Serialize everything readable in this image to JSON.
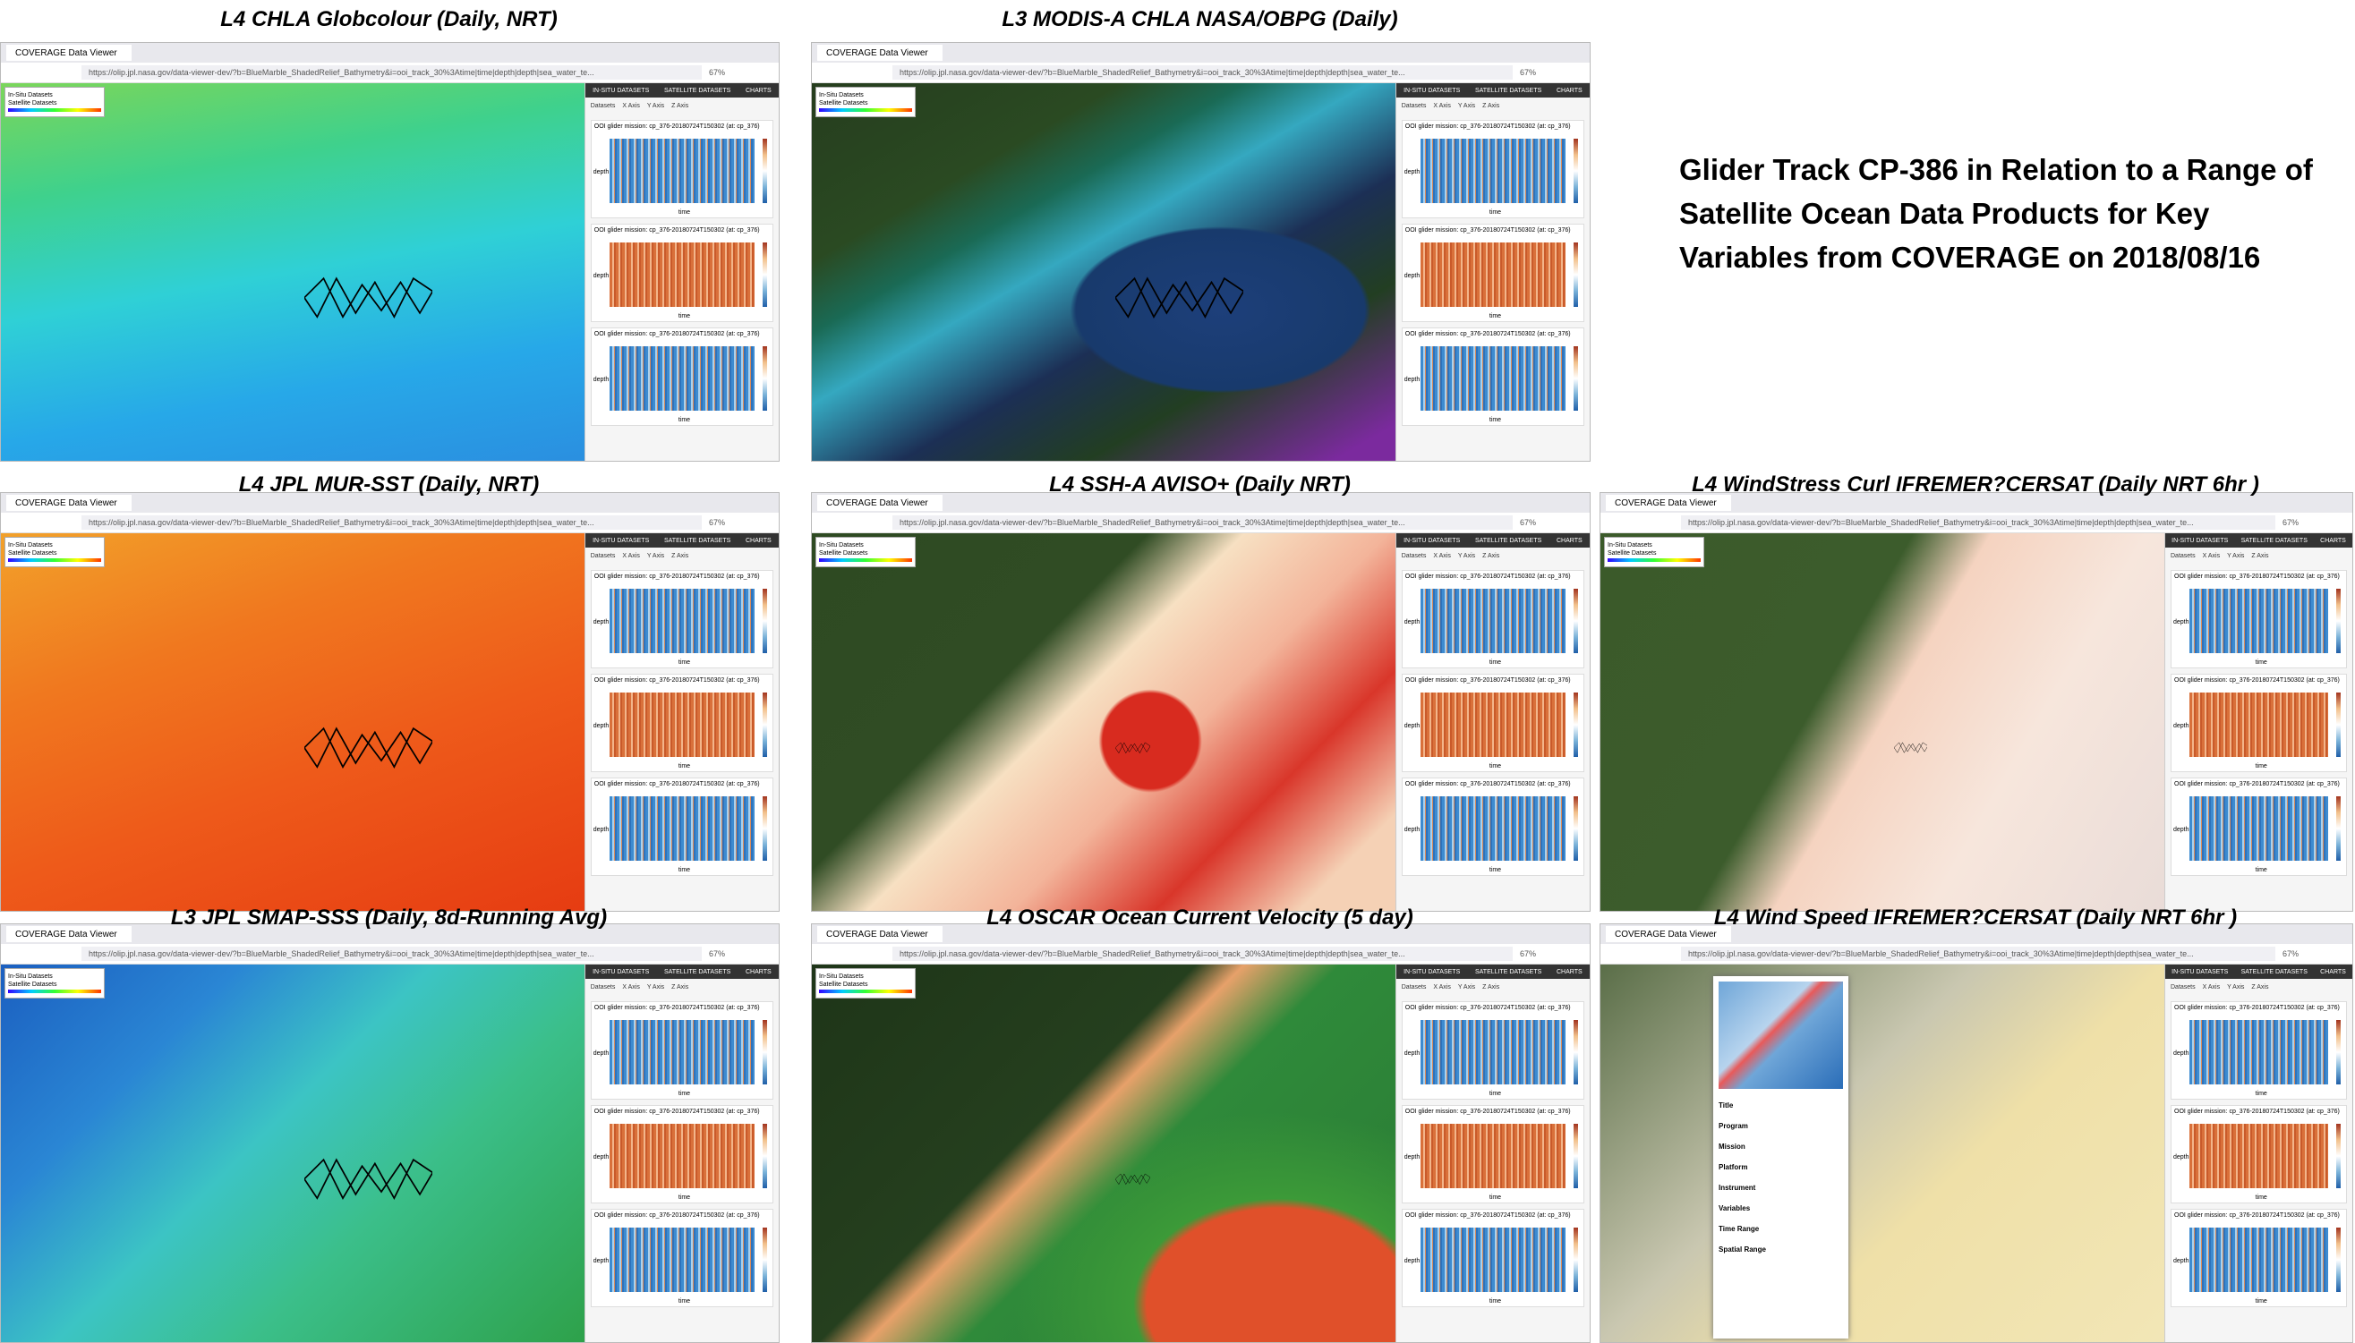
{
  "heading": "Glider Track CP-386 in Relation to a Range of Satellite Ocean Data Products for Key Variables from COVERAGE on 2018/08/16",
  "browser": {
    "tab": "COVERAGE Data Viewer",
    "url": "https://olip.jpl.nasa.gov/data-viewer-dev/?b=BlueMarble_ShadedRelief_Bathymetry&i=ooi_track_30%3Atime|time|depth|depth|sea_water_te...",
    "zoom": "67%"
  },
  "side": {
    "tabs": [
      "IN-SITU DATASETS",
      "SATELLITE DATASETS",
      "CHARTS"
    ],
    "controls": [
      "Datasets",
      "X Axis",
      "Y Axis",
      "Z Axis"
    ],
    "chart_title": "OOI glider mission: cp_376-20180724T150302 (at: cp_376)",
    "x_label": "time",
    "y_label": "depth"
  },
  "legend": {
    "insitu": "In-Situ Datasets",
    "satellite": "Satellite Datasets"
  },
  "panels": [
    {
      "title": "L4 CHLA Globcolour  (Daily, NRT)"
    },
    {
      "title": "L3 MODIS-A CHLA NASA/OBPG (Daily)"
    },
    {
      "title": "L4 JPL MUR-SST (Daily, NRT)"
    },
    {
      "title": "L4 SSH-A AVISO+ (Daily NRT)"
    },
    {
      "title": "L4 WindStress Curl IFREMER?CERSAT (Daily NRT 6hr )"
    },
    {
      "title": "L3 JPL SMAP-SSS (Daily, 8d-Running Avg)"
    },
    {
      "title": "L4 OSCAR Ocean Current Velocity (5 day)"
    },
    {
      "title": "L4 Wind Speed IFREMER?CERSAT (Daily NRT 6hr )"
    }
  ],
  "popup": [
    "Title",
    "Program",
    "Mission",
    "Platform",
    "Instrument",
    "Variables",
    "Time Range",
    "Spatial Range"
  ]
}
